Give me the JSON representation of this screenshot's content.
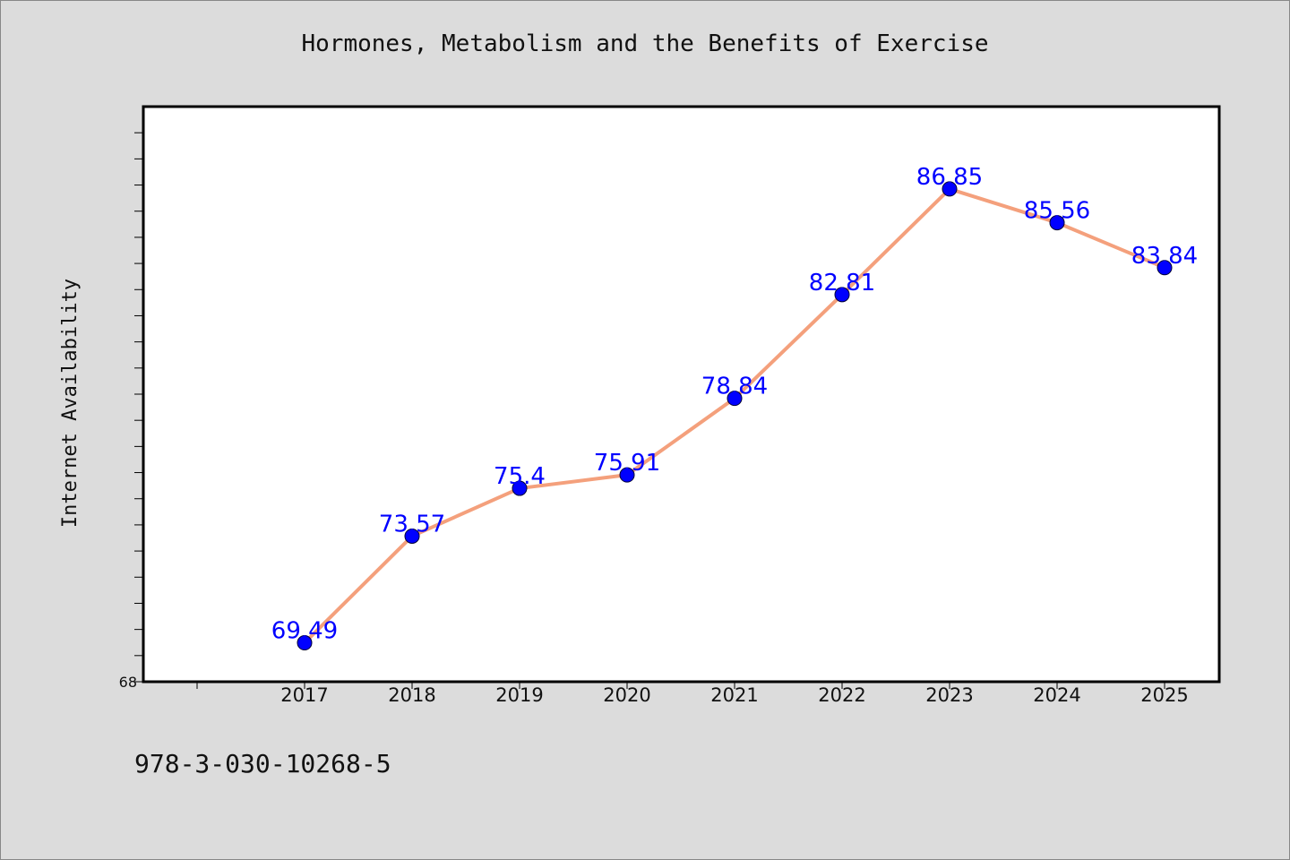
{
  "title": "Hormones, Metabolism and the Benefits of Exercise",
  "footer_code": "978-3-030-10268-5",
  "colors": {
    "background": "#dcdcdc",
    "plot_background": "#ffffff",
    "line": "#f4a07c",
    "marker": "#0000ff",
    "data_label": "#0000ff"
  },
  "chart_data": {
    "type": "line",
    "title": "Hormones, Metabolism and the Benefits of Exercise",
    "xlabel": "",
    "ylabel": "Internet Availability",
    "x": [
      "2017",
      "2018",
      "2019",
      "2020",
      "2021",
      "2022",
      "2023",
      "2024",
      "2025"
    ],
    "series": [
      {
        "values": [
          69.49,
          73.57,
          75.4,
          75.91,
          78.84,
          82.81,
          86.85,
          85.56,
          83.84
        ]
      }
    ],
    "data_labels": [
      "69.49",
      "73.57",
      "75.4",
      "75.91",
      "78.84",
      "82.81",
      "86.85",
      "85.56",
      "83.84"
    ],
    "ylim": [
      68,
      90
    ],
    "y_tick_labels": [
      "68"
    ],
    "grid": false,
    "legend": "none"
  }
}
